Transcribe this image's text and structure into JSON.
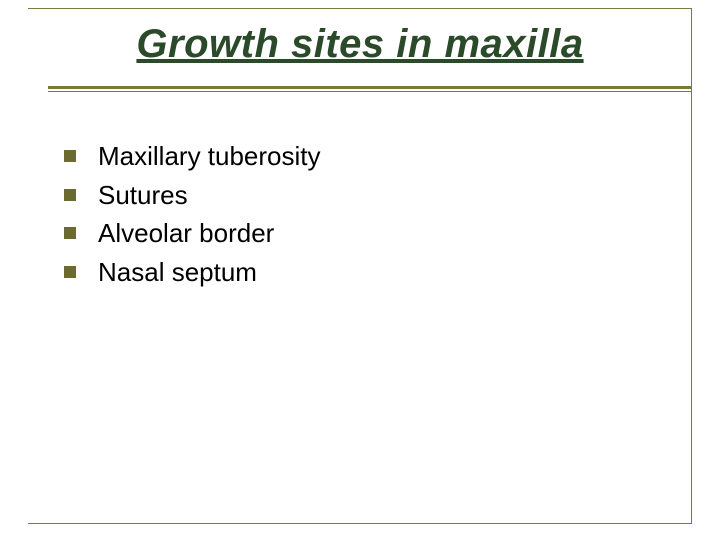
{
  "slide": {
    "title": "Growth sites in maxilla",
    "title_color": "#2a4a2a",
    "title_fontsize": 40,
    "title_style": "italic bold underline",
    "frame_border_color": "#7a7a3a",
    "rule_color": "#7a7a3a",
    "background_color": "#ffffff",
    "bullet_color": "#6b6b2f",
    "bullet_size": 12,
    "item_fontsize": 26,
    "item_color": "#000000",
    "items": [
      {
        "label": "Maxillary tuberosity"
      },
      {
        "label": "Sutures"
      },
      {
        "label": "Alveolar border"
      },
      {
        "label": "Nasal septum"
      }
    ]
  }
}
